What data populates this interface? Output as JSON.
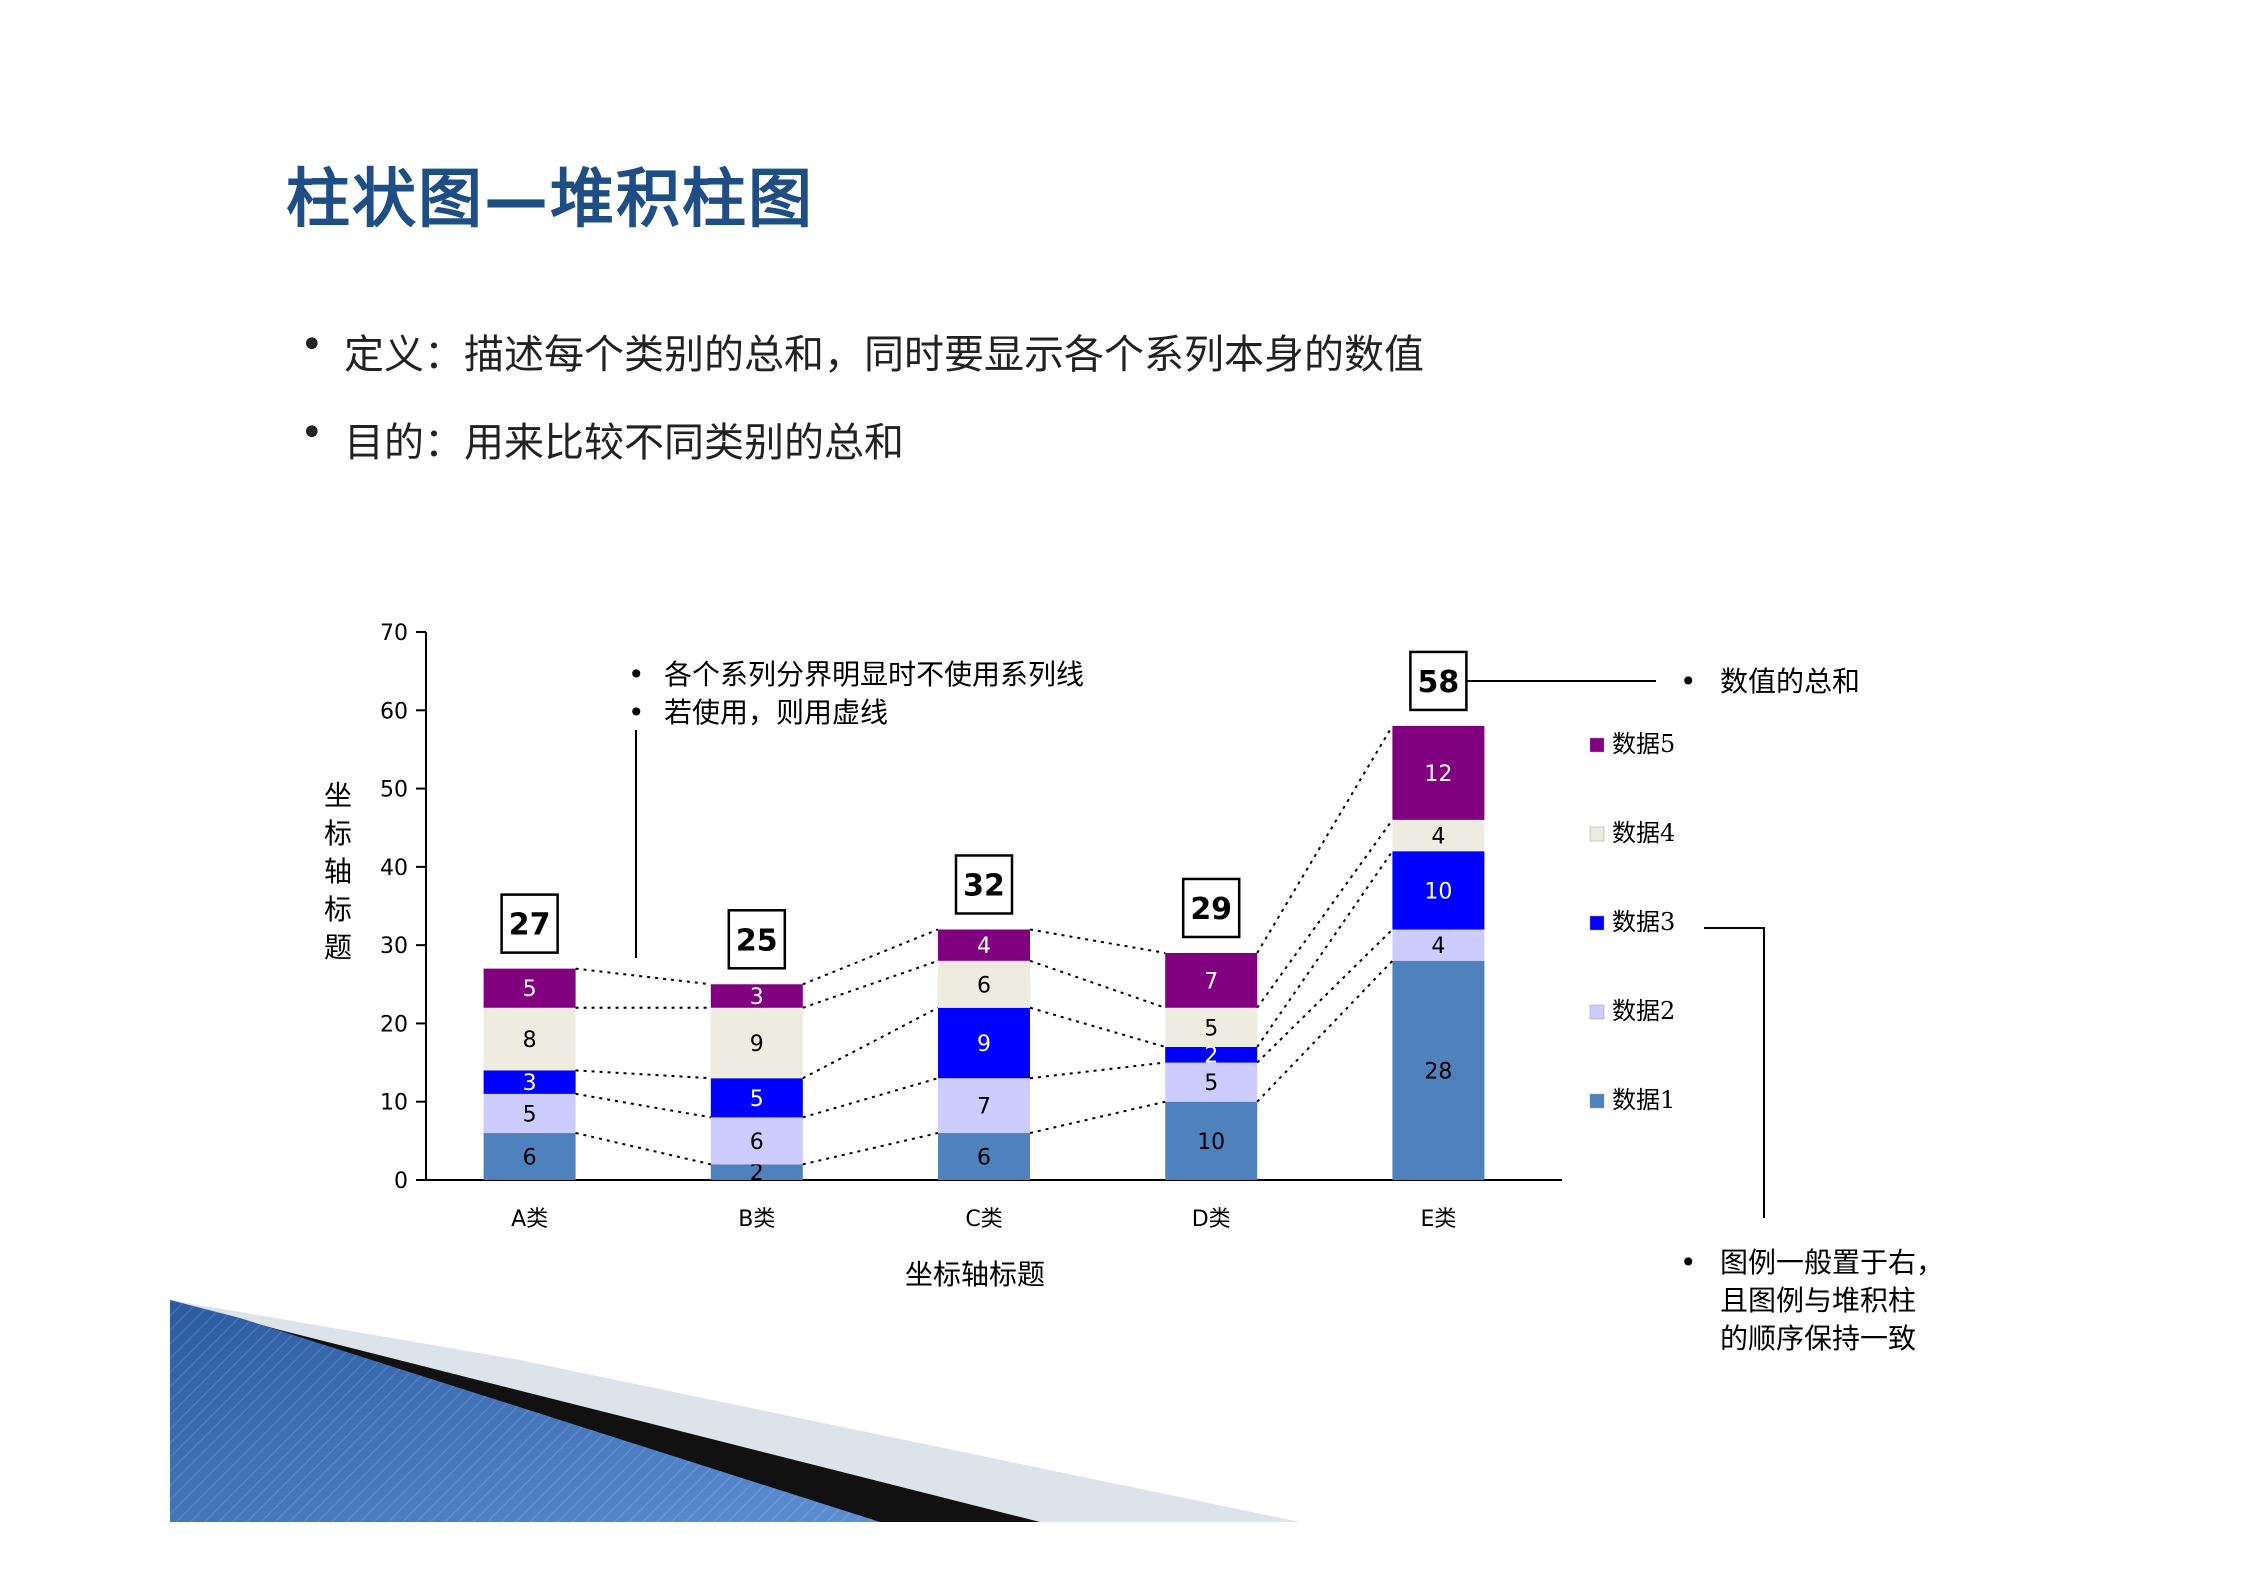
{
  "slide": {
    "title": "柱状图—堆积柱图",
    "bullets": [
      "定义：描述每个类别的总和，同时要显示各个系列本身的数值",
      "目的：用来比较不同类别的总和"
    ]
  },
  "chart_data": {
    "type": "bar",
    "stacked": true,
    "categories": [
      "A类",
      "B类",
      "C类",
      "D类",
      "E类"
    ],
    "series": [
      {
        "name": "数据1",
        "color": "#4f81bd",
        "values": [
          6,
          2,
          6,
          10,
          28
        ]
      },
      {
        "name": "数据2",
        "color": "#ccccff",
        "values": [
          5,
          6,
          7,
          5,
          4
        ]
      },
      {
        "name": "数据3",
        "color": "#0000ff",
        "values": [
          3,
          5,
          9,
          2,
          10
        ]
      },
      {
        "name": "数据4",
        "color": "#eeece1",
        "values": [
          8,
          9,
          6,
          5,
          4
        ]
      },
      {
        "name": "数据5",
        "color": "#800080",
        "values": [
          5,
          3,
          4,
          7,
          12
        ]
      }
    ],
    "totals": [
      27,
      25,
      32,
      29,
      58
    ],
    "xlabel": "坐标轴标题",
    "ylabel": "坐标轴标题",
    "ylim": [
      0,
      70
    ],
    "yticks": [
      0,
      10,
      20,
      30,
      40,
      50,
      60,
      70
    ],
    "grid": false,
    "legend_position": "right",
    "connector_lines": "dotted",
    "annotations": {
      "series_lines": [
        "各个系列分界明显时不使用系列线",
        "若使用，则用虚线"
      ],
      "total": "数值的总和",
      "legend": [
        "图例一般置于右，",
        "且图例与堆积柱",
        "的顺序保持一致"
      ]
    }
  }
}
